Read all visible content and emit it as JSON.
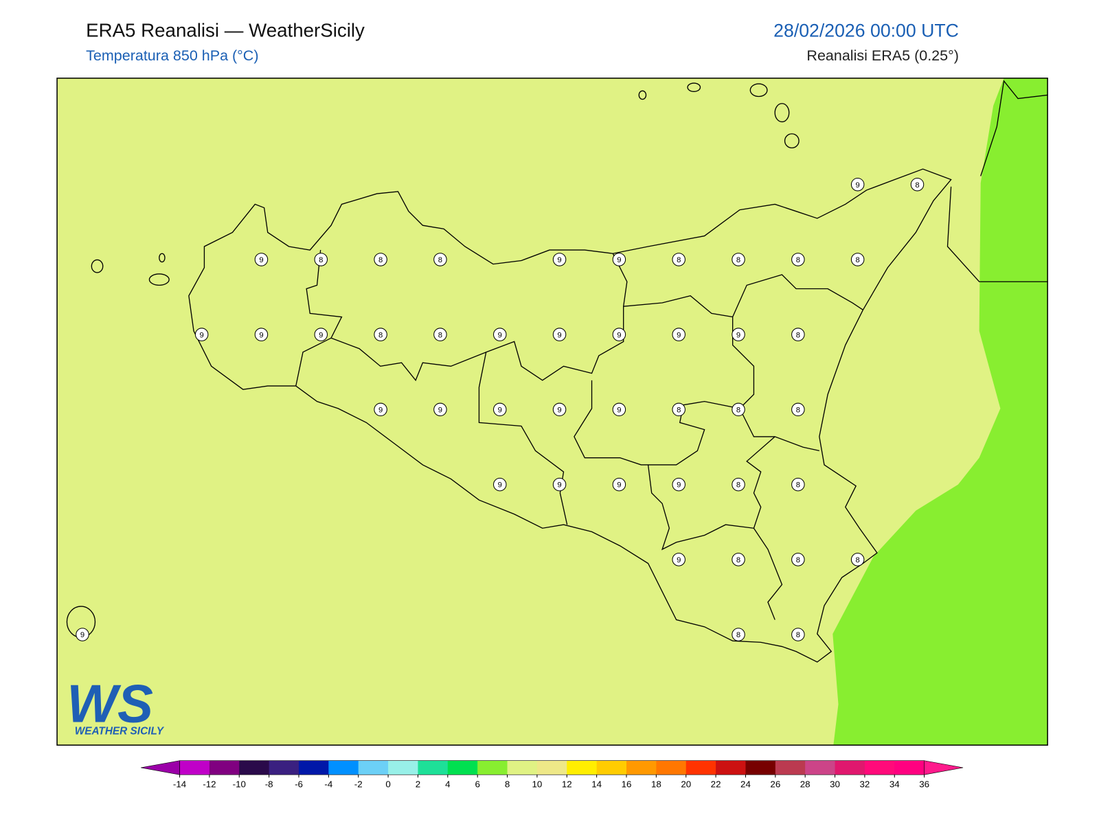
{
  "header": {
    "title": "ERA5 Reanalisi — WeatherSicily",
    "subtitle": "Temperatura 850 hPa (°C)",
    "date": "28/02/2026 00:00 UTC",
    "source": "Reanalisi ERA5 (0.25°)"
  },
  "map": {
    "background_color": "#e0f284",
    "point_values": [
      9,
      8,
      9,
      8,
      8,
      8,
      9,
      9,
      8,
      8,
      8,
      8,
      9,
      9,
      9,
      8,
      8,
      9,
      9,
      9,
      9,
      9,
      8,
      9,
      9,
      9,
      9,
      9,
      8,
      8,
      8,
      9,
      9,
      9,
      9,
      8,
      8,
      9,
      8,
      8,
      8,
      9,
      8,
      8
    ]
  },
  "logo": {
    "mark": "WS",
    "name": "WEATHER SICILY"
  },
  "colorbar": {
    "ticks": [
      -14,
      -12,
      -10,
      -8,
      -6,
      -4,
      -2,
      0,
      2,
      4,
      6,
      8,
      10,
      12,
      14,
      16,
      18,
      20,
      22,
      24,
      26,
      28,
      30,
      32,
      34,
      36
    ],
    "under_color": "#9b00a8",
    "over_color": "#ff1a8c",
    "colors": [
      "#c000c8",
      "#800080",
      "#2a0a4a",
      "#3a2080",
      "#0018a8",
      "#0090ff",
      "#6cd0f6",
      "#98f0e8",
      "#1ee098",
      "#00e050",
      "#88ee30",
      "#e0f284",
      "#eee888",
      "#ffee00",
      "#ffcc00",
      "#ff9900",
      "#ff7700",
      "#ff3300",
      "#cc1111",
      "#770000",
      "#bb3a50",
      "#cc4488",
      "#e0186e",
      "#ff0a7a",
      "#ff0080"
    ]
  }
}
